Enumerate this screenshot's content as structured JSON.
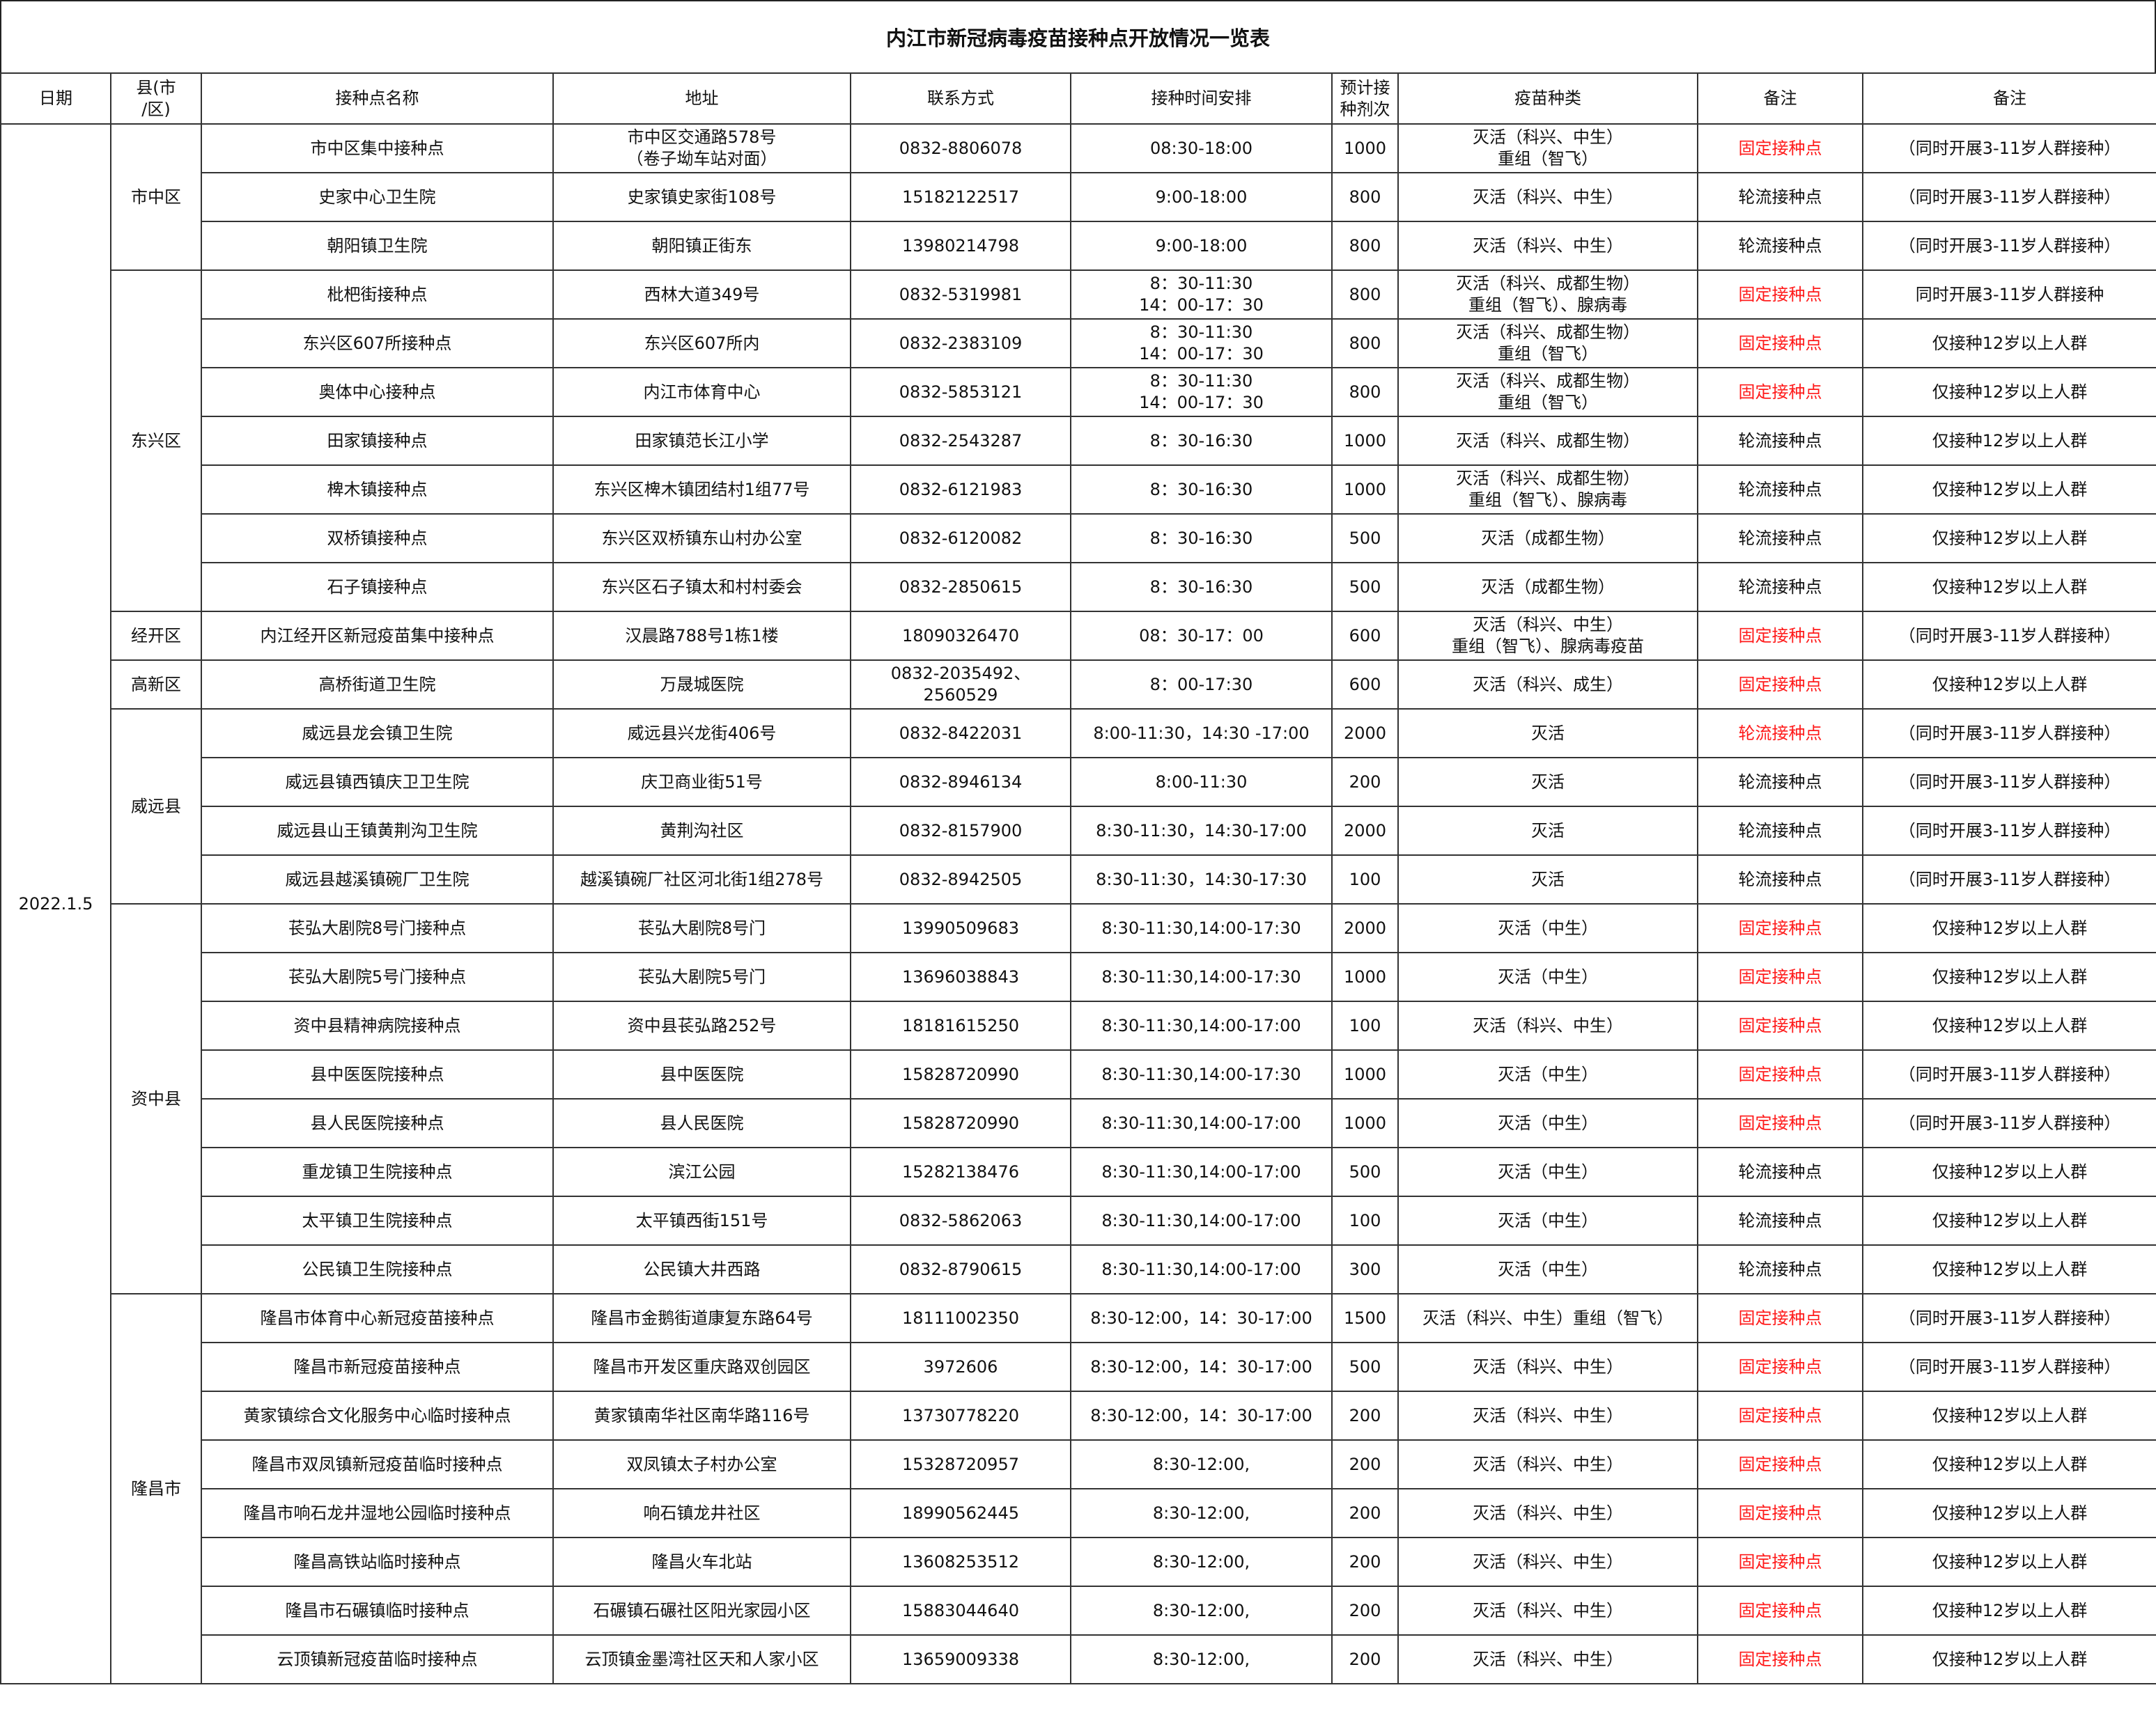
{
  "title": "内江市新冠病毒疫苗接种点开放情况一览表",
  "headers": [
    "日期",
    "县(市\n/区)",
    "接种点名称",
    "地址",
    "联系方式",
    "接种时间安排",
    "预计接\n种剂次",
    "疫苗种类",
    "备注",
    "备注"
  ],
  "date": "2022.1.5",
  "colors": {
    "highlight": "#ff1a1a",
    "border": "#333333"
  },
  "districts": [
    {
      "name": "市中区",
      "rows": [
        {
          "site": "市中区集中接种点",
          "address": "市中区交通路578号\n（卷子坳车站对面）",
          "phone": "0832-8806078",
          "time": "08:30-18:00",
          "doses": "1000",
          "vaccine": "灭活（科兴、中生）\n重组（智飞）",
          "type": "固定接种点",
          "red": true,
          "note": "（同时开展3-11岁人群接种）"
        },
        {
          "site": "史家中心卫生院",
          "address": "史家镇史家街108号",
          "phone": "15182122517",
          "time": "9:00-18:00",
          "doses": "800",
          "vaccine": "灭活（科兴、中生）",
          "type": "轮流接种点",
          "red": false,
          "note": "（同时开展3-11岁人群接种）"
        },
        {
          "site": "朝阳镇卫生院",
          "address": "朝阳镇正街东",
          "phone": "13980214798",
          "time": "9:00-18:00",
          "doses": "800",
          "vaccine": "灭活（科兴、中生）",
          "type": "轮流接种点",
          "red": false,
          "note": "（同时开展3-11岁人群接种）"
        }
      ]
    },
    {
      "name": "东兴区",
      "rows": [
        {
          "site": "枇杷街接种点",
          "address": "西林大道349号",
          "phone": "0832-5319981",
          "time": "8：30-11:30\n14：00-17：30",
          "doses": "800",
          "vaccine": "灭活（科兴、成都生物）\n重组（智飞）、腺病毒",
          "type": "固定接种点",
          "red": true,
          "note": "同时开展3-11岁人群接种"
        },
        {
          "site": "东兴区607所接种点",
          "address": "东兴区607所内",
          "phone": "0832-2383109",
          "time": "8：30-11:30\n14：00-17：30",
          "doses": "800",
          "vaccine": "灭活（科兴、成都生物）\n重组（智飞）",
          "type": "固定接种点",
          "red": true,
          "note": "仅接种12岁以上人群"
        },
        {
          "site": "奥体中心接种点",
          "address": "内江市体育中心",
          "phone": "0832-5853121",
          "time": "8：30-11:30\n14：00-17：30",
          "doses": "800",
          "vaccine": "灭活（科兴、成都生物）\n重组（智飞）",
          "type": "固定接种点",
          "red": true,
          "note": "仅接种12岁以上人群"
        },
        {
          "site": "田家镇接种点",
          "address": "田家镇范长江小学",
          "phone": "0832-2543287",
          "time": "8：30-16:30",
          "doses": "1000",
          "vaccine": "灭活（科兴、成都生物）",
          "type": "轮流接种点",
          "red": false,
          "note": "仅接种12岁以上人群"
        },
        {
          "site": "椑木镇接种点",
          "address": "东兴区椑木镇团结村1组77号",
          "phone": "0832-6121983",
          "time": "8：30-16:30",
          "doses": "1000",
          "vaccine": "灭活（科兴、成都生物）\n重组（智飞）、腺病毒",
          "type": "轮流接种点",
          "red": false,
          "note": "仅接种12岁以上人群"
        },
        {
          "site": "双桥镇接种点",
          "address": "东兴区双桥镇东山村办公室",
          "phone": "0832-6120082",
          "time": "8：30-16:30",
          "doses": "500",
          "vaccine": "灭活（成都生物）",
          "type": "轮流接种点",
          "red": false,
          "note": "仅接种12岁以上人群"
        },
        {
          "site": "石子镇接种点",
          "address": "东兴区石子镇太和村村委会",
          "phone": "0832-2850615",
          "time": "8：30-16:30",
          "doses": "500",
          "vaccine": "灭活（成都生物）",
          "type": "轮流接种点",
          "red": false,
          "note": "仅接种12岁以上人群"
        }
      ]
    },
    {
      "name": "经开区",
      "rows": [
        {
          "site": "内江经开区新冠疫苗集中接种点",
          "address": "汉晨路788号1栋1楼",
          "phone": "18090326470",
          "time": "08：30-17：00",
          "doses": "600",
          "vaccine": "灭活（科兴、中生）\n重组（智飞）、腺病毒疫苗",
          "type": "固定接种点",
          "red": true,
          "note": "（同时开展3-11岁人群接种）"
        }
      ]
    },
    {
      "name": "高新区",
      "rows": [
        {
          "site": "高桥街道卫生院",
          "address": "万晟城医院",
          "phone": "0832-2035492、2560529",
          "time": "8：00-17:30",
          "doses": "600",
          "vaccine": "灭活（科兴、成生）",
          "type": "固定接种点",
          "red": true,
          "note": "仅接种12岁以上人群"
        }
      ]
    },
    {
      "name": "威远县",
      "rows": [
        {
          "site": "威远县龙会镇卫生院",
          "address": "威远县兴龙街406号",
          "phone": "0832-8422031",
          "time": "8:00-11:30，14:30 -17:00",
          "doses": "2000",
          "vaccine": "灭活",
          "type": "轮流接种点",
          "red": true,
          "note": "（同时开展3-11岁人群接种）"
        },
        {
          "site": "威远县镇西镇庆卫卫生院",
          "address": "庆卫商业街51号",
          "phone": "0832-8946134",
          "time": "8:00-11:30",
          "doses": "200",
          "vaccine": "灭活",
          "type": "轮流接种点",
          "red": false,
          "note": "（同时开展3-11岁人群接种）"
        },
        {
          "site": "威远县山王镇黄荆沟卫生院",
          "address": "黄荆沟社区",
          "phone": "0832-8157900",
          "time": "8:30-11:30，14:30-17:00",
          "doses": "2000",
          "vaccine": "灭活",
          "type": "轮流接种点",
          "red": false,
          "note": "（同时开展3-11岁人群接种）"
        },
        {
          "site": "威远县越溪镇碗厂卫生院",
          "address": "越溪镇碗厂社区河北街1组278号",
          "phone": "0832-8942505",
          "time": "8:30-11:30，14:30-17:30",
          "doses": "100",
          "vaccine": "灭活",
          "type": "轮流接种点",
          "red": false,
          "note": "（同时开展3-11岁人群接种）"
        }
      ]
    },
    {
      "name": "资中县",
      "rows": [
        {
          "site": "苌弘大剧院8号门接种点",
          "address": "苌弘大剧院8号门",
          "phone": "13990509683",
          "time": "8:30-11:30,14:00-17:30",
          "doses": "2000",
          "vaccine": "灭活（中生）",
          "type": "固定接种点",
          "red": true,
          "note": "仅接种12岁以上人群"
        },
        {
          "site": "苌弘大剧院5号门接种点",
          "address": "苌弘大剧院5号门",
          "phone": "13696038843",
          "time": "8:30-11:30,14:00-17:30",
          "doses": "1000",
          "vaccine": "灭活（中生）",
          "type": "固定接种点",
          "red": true,
          "note": "仅接种12岁以上人群"
        },
        {
          "site": "资中县精神病院接种点",
          "address": "资中县苌弘路252号",
          "phone": "18181615250",
          "time": "8:30-11:30,14:00-17:00",
          "doses": "100",
          "vaccine": "灭活（科兴、中生）",
          "type": "固定接种点",
          "red": true,
          "note": "仅接种12岁以上人群"
        },
        {
          "site": "县中医医院接种点",
          "address": "县中医医院",
          "phone": "15828720990",
          "time": "8:30-11:30,14:00-17:30",
          "doses": "1000",
          "vaccine": "灭活（中生）",
          "type": "固定接种点",
          "red": true,
          "note": "（同时开展3-11岁人群接种）"
        },
        {
          "site": "县人民医院接种点",
          "address": "县人民医院",
          "phone": "15828720990",
          "time": "8:30-11:30,14:00-17:00",
          "doses": "1000",
          "vaccine": "灭活（中生）",
          "type": "固定接种点",
          "red": true,
          "note": "（同时开展3-11岁人群接种）"
        },
        {
          "site": "重龙镇卫生院接种点",
          "address": "滨江公园",
          "phone": "15282138476",
          "time": "8:30-11:30,14:00-17:00",
          "doses": "500",
          "vaccine": "灭活（中生）",
          "type": "轮流接种点",
          "red": false,
          "note": "仅接种12岁以上人群"
        },
        {
          "site": "太平镇卫生院接种点",
          "address": "太平镇西街151号",
          "phone": "0832-5862063",
          "time": "8:30-11:30,14:00-17:00",
          "doses": "100",
          "vaccine": "灭活（中生）",
          "type": "轮流接种点",
          "red": false,
          "note": "仅接种12岁以上人群"
        },
        {
          "site": "公民镇卫生院接种点",
          "address": "公民镇大井西路",
          "phone": "0832-8790615",
          "time": "8:30-11:30,14:00-17:00",
          "doses": "300",
          "vaccine": "灭活（中生）",
          "type": "轮流接种点",
          "red": false,
          "note": "仅接种12岁以上人群"
        }
      ]
    },
    {
      "name": "隆昌市",
      "rows": [
        {
          "site": "隆昌市体育中心新冠疫苗接种点",
          "address": "隆昌市金鹅街道康复东路64号",
          "phone": "18111002350",
          "time": "8:30-12:00，14：30-17:00",
          "doses": "1500",
          "vaccine": "灭活（科兴、中生）重组（智飞）",
          "type": "固定接种点",
          "red": true,
          "note": "（同时开展3-11岁人群接种）"
        },
        {
          "site": "隆昌市新冠疫苗接种点",
          "address": "隆昌市开发区重庆路双创园区",
          "phone": "3972606",
          "time": "8:30-12:00，14：30-17:00",
          "doses": "500",
          "vaccine": "灭活（科兴、中生）",
          "type": "固定接种点",
          "red": true,
          "note": "（同时开展3-11岁人群接种）"
        },
        {
          "site": "黄家镇综合文化服务中心临时接种点",
          "address": "黄家镇南华社区南华路116号",
          "phone": "13730778220",
          "time": "8:30-12:00，14：30-17:00",
          "doses": "200",
          "vaccine": "灭活（科兴、中生）",
          "type": "固定接种点",
          "red": true,
          "note": "仅接种12岁以上人群"
        },
        {
          "site": "隆昌市双凤镇新冠疫苗临时接种点",
          "address": "双凤镇太子村办公室",
          "phone": "15328720957",
          "time": "8:30-12:00,",
          "doses": "200",
          "vaccine": "灭活（科兴、中生）",
          "type": "固定接种点",
          "red": true,
          "note": "仅接种12岁以上人群"
        },
        {
          "site": "隆昌市响石龙井湿地公园临时接种点",
          "address": "响石镇龙井社区",
          "phone": "18990562445",
          "time": "8:30-12:00,",
          "doses": "200",
          "vaccine": "灭活（科兴、中生）",
          "type": "固定接种点",
          "red": true,
          "note": "仅接种12岁以上人群"
        },
        {
          "site": "隆昌高铁站临时接种点",
          "address": "隆昌火车北站",
          "phone": "13608253512",
          "time": "8:30-12:00,",
          "doses": "200",
          "vaccine": "灭活（科兴、中生）",
          "type": "固定接种点",
          "red": true,
          "note": "仅接种12岁以上人群"
        },
        {
          "site": "隆昌市石碾镇临时接种点",
          "address": "石碾镇石碾社区阳光家园小区",
          "phone": "15883044640",
          "time": "8:30-12:00,",
          "doses": "200",
          "vaccine": "灭活（科兴、中生）",
          "type": "固定接种点",
          "red": true,
          "note": "仅接种12岁以上人群"
        },
        {
          "site": "云顶镇新冠疫苗临时接种点",
          "address": "云顶镇金墨湾社区天和人家小区",
          "phone": "13659009338",
          "time": "8:30-12:00,",
          "doses": "200",
          "vaccine": "灭活（科兴、中生）",
          "type": "固定接种点",
          "red": true,
          "note": "仅接种12岁以上人群"
        }
      ]
    }
  ]
}
